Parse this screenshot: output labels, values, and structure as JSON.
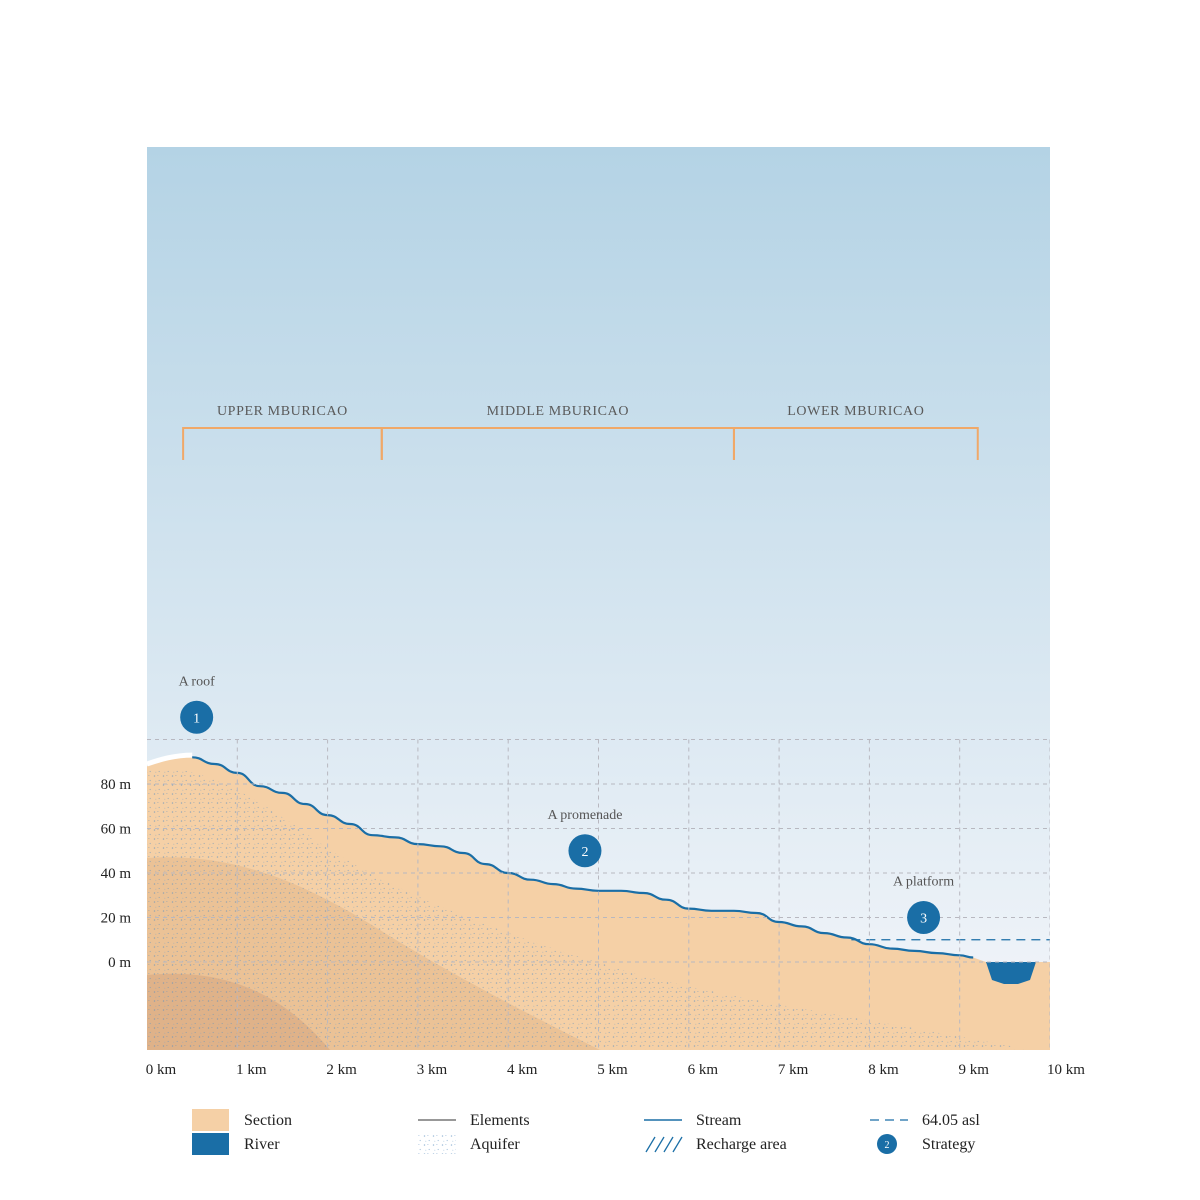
{
  "zones": [
    {
      "label": "UPPER MBURICAO",
      "start_km": 0.4,
      "end_km": 2.6
    },
    {
      "label": "MIDDLE MBURICAO",
      "start_km": 2.6,
      "end_km": 6.5
    },
    {
      "label": "LOWER MBURICAO",
      "start_km": 6.5,
      "end_km": 9.2
    }
  ],
  "x_ticks": [
    "0 km",
    "1 km",
    "2 km",
    "3 km",
    "4 km",
    "5 km",
    "6 km",
    "7 km",
    "8 km",
    "9 km",
    "10 km"
  ],
  "y_ticks": [
    "80 m",
    "60 m",
    "40 m",
    "20 m",
    "0 m"
  ],
  "strategies": [
    {
      "title": "A roof",
      "number": "1",
      "km": 0.55,
      "elev_m": 110
    },
    {
      "title": "A promenade",
      "number": "2",
      "km": 4.85,
      "elev_m": 50
    },
    {
      "title": "A platform",
      "number": "3",
      "km": 8.6,
      "elev_m": 20
    }
  ],
  "profile": {
    "stream_km": [
      0.5,
      0.75,
      1.0,
      1.25,
      1.5,
      1.75,
      2.0,
      2.25,
      2.5,
      2.75,
      3.0,
      3.25,
      3.5,
      3.75,
      4.0,
      4.25,
      4.5,
      4.75,
      5.0,
      5.25,
      5.5,
      5.75,
      6.0,
      6.25,
      6.5,
      6.75,
      7.0,
      7.25,
      7.5,
      7.75,
      8.0,
      8.25,
      8.5,
      8.75,
      9.0,
      9.15
    ],
    "stream_m": [
      92,
      89,
      85,
      79,
      76,
      71,
      66,
      62,
      57,
      56,
      53,
      52,
      49,
      44,
      40,
      37,
      35,
      33,
      32,
      32,
      31,
      28,
      24,
      23,
      23,
      22,
      18,
      16,
      13,
      11,
      8,
      6,
      5,
      4,
      3,
      2
    ],
    "datum_asl": 10
  },
  "legend": [
    {
      "label": "Section",
      "symbol": "section",
      "color": "#f5d0a6"
    },
    {
      "label": "River",
      "symbol": "river",
      "color": "#1a6ea6"
    },
    {
      "label": "Elements",
      "symbol": "elements",
      "color": "#777777"
    },
    {
      "label": "Aquifer",
      "symbol": "aquifer",
      "color": "#5b8fc0"
    },
    {
      "label": "Stream",
      "symbol": "stream",
      "color": "#1a6ea6"
    },
    {
      "label": "Recharge area",
      "symbol": "recharge",
      "color": "#1a6ea6"
    },
    {
      "label": "64.05 asl",
      "symbol": "datum",
      "color": "#1a6ea6"
    },
    {
      "label": "Strategy",
      "symbol": "strategy",
      "number": "2",
      "color": "#1a6ea6"
    }
  ],
  "colors": {
    "sky_top": "#b4d3e5",
    "sky_bottom": "#f4f6fa",
    "section": "#f5d0a6",
    "soil_mid": "#e9bf93",
    "soil_deep": "#dcae86",
    "stream": "#1a6ea6",
    "zone_bracket": "#f0a868",
    "grid": "#b8b8c0"
  }
}
